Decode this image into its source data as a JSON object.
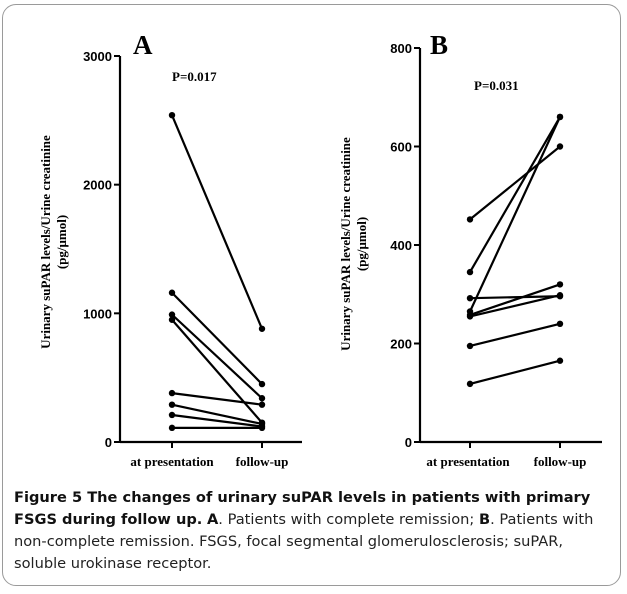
{
  "caption": {
    "title": "Figure 5 The changes of urinary suPAR levels in patients with primary FSGS during follow up.",
    "a_label": "A",
    "a_text": ". Patients with complete remission; ",
    "b_label": "B",
    "b_text": ". Patients with non-complete remission. FSGS, focal segmental glomerulosclerosis; suPAR, soluble urokinase receptor."
  },
  "chart_data": [
    {
      "type": "line",
      "panel_label": "A",
      "annotation": "P=0.017",
      "ylabel_line1": "Urinary suPAR levels/Urine creatinine",
      "ylabel_line2": "(pg/μmol)",
      "categories": [
        "at presentation",
        "follow-up"
      ],
      "ylim": [
        0,
        3000
      ],
      "yticks": [
        0,
        1000,
        2000,
        3000
      ],
      "series": [
        {
          "values": [
            2540,
            880
          ]
        },
        {
          "values": [
            1160,
            450
          ]
        },
        {
          "values": [
            990,
            340
          ]
        },
        {
          "values": [
            950,
            150
          ]
        },
        {
          "values": [
            380,
            290
          ]
        },
        {
          "values": [
            290,
            140
          ]
        },
        {
          "values": [
            210,
            120
          ]
        },
        {
          "values": [
            110,
            110
          ]
        }
      ]
    },
    {
      "type": "line",
      "panel_label": "B",
      "annotation": "P=0.031",
      "ylabel_line1": "Urinary suPAR levels/Urine creatinine",
      "ylabel_line2": "(pg/μmol)",
      "categories": [
        "at presentation",
        "follow-up"
      ],
      "ylim": [
        0,
        800
      ],
      "yticks": [
        0,
        200,
        400,
        600,
        800
      ],
      "series": [
        {
          "values": [
            452,
            600
          ]
        },
        {
          "values": [
            345,
            660
          ]
        },
        {
          "values": [
            292,
            296
          ]
        },
        {
          "values": [
            265,
            660
          ]
        },
        {
          "values": [
            258,
            320
          ]
        },
        {
          "values": [
            255,
            298
          ]
        },
        {
          "values": [
            195,
            240
          ]
        },
        {
          "values": [
            118,
            165
          ]
        }
      ]
    }
  ]
}
